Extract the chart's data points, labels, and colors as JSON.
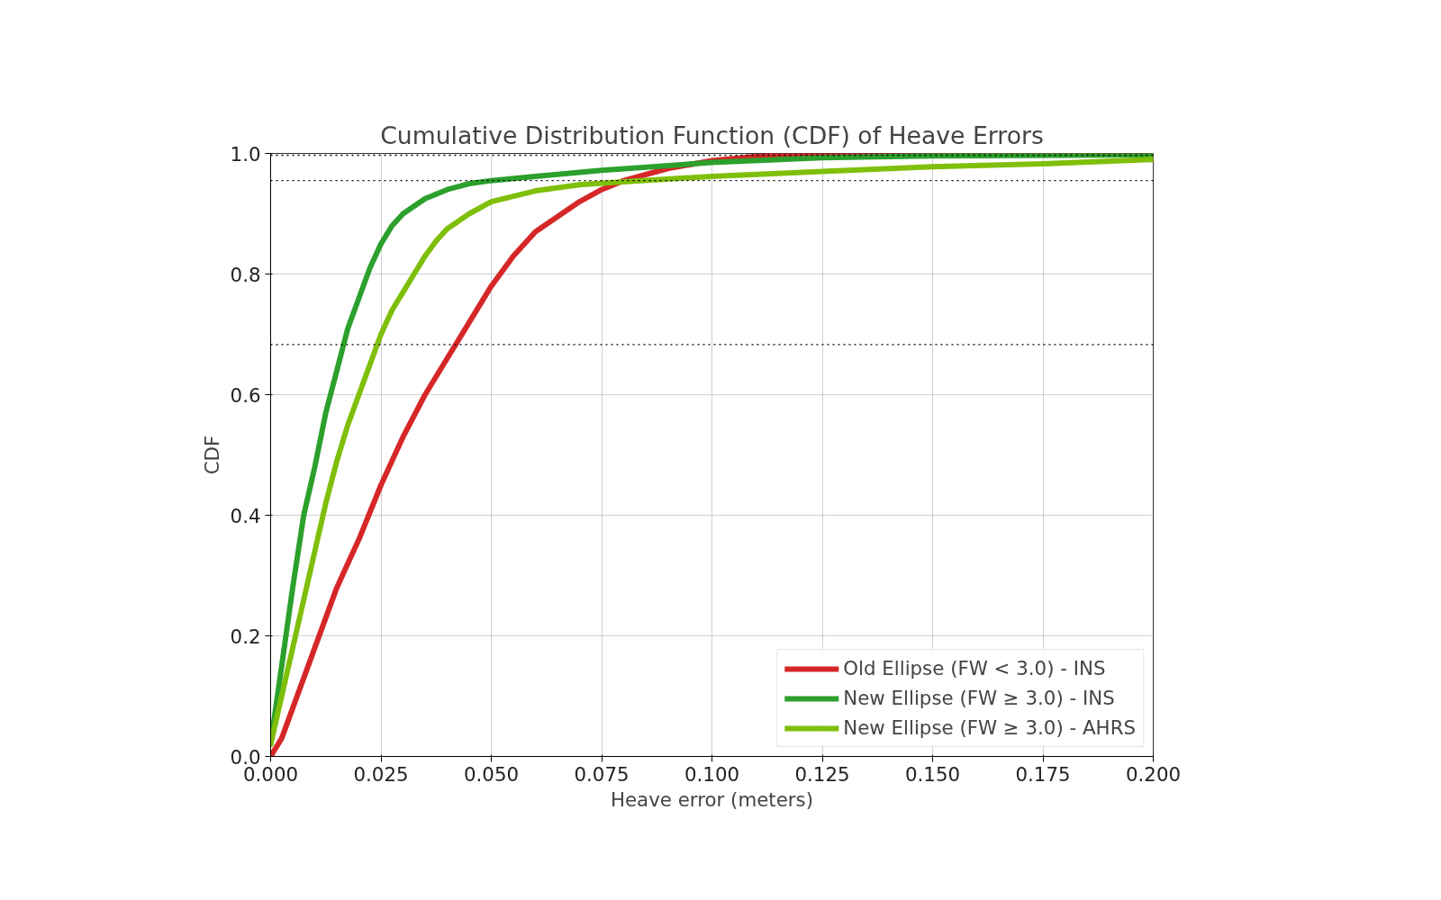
{
  "chart_data": {
    "type": "line",
    "title": "Cumulative Distribution Function (CDF) of Heave Errors",
    "xlabel": "Heave error (meters)",
    "ylabel": "CDF",
    "xlim": [
      0,
      0.2
    ],
    "ylim": [
      0,
      1
    ],
    "xticks": [
      {
        "value": 0,
        "label": "0.000"
      },
      {
        "value": 0.025,
        "label": "0.025"
      },
      {
        "value": 0.05,
        "label": "0.050"
      },
      {
        "value": 0.075,
        "label": "0.075"
      },
      {
        "value": 0.1,
        "label": "0.100"
      },
      {
        "value": 0.125,
        "label": "0.125"
      },
      {
        "value": 0.15,
        "label": "0.150"
      },
      {
        "value": 0.175,
        "label": "0.175"
      },
      {
        "value": 0.2,
        "label": "0.200"
      }
    ],
    "yticks": [
      {
        "value": 0,
        "label": "0.0"
      },
      0.2,
      0.4,
      0.6,
      0.8,
      {
        "value": 1,
        "label": "1.0"
      }
    ],
    "grid": true,
    "legend": "bottom right",
    "line_style": "solid",
    "ref_lines": [
      {
        "axis": "y",
        "value": 0.683,
        "color": "#000000",
        "line_style": "dotted"
      },
      {
        "axis": "y",
        "value": 0.955,
        "color": "#000000",
        "line_style": "dotted"
      },
      {
        "axis": "y",
        "value": 0.997,
        "color": "#000000",
        "line_style": "dotted"
      }
    ],
    "series": [
      {
        "name": "Old Ellipse (FW < 3.0) - INS",
        "color": "#d62728",
        "x": [
          0,
          0.0025,
          0.005,
          0.0075,
          0.01,
          0.0125,
          0.015,
          0.0175,
          0.02,
          0.025,
          0.03,
          0.035,
          0.04,
          0.045,
          0.05,
          0.055,
          0.06,
          0.065,
          0.07,
          0.075,
          0.08,
          0.09,
          0.1,
          0.11,
          0.12,
          0.2
        ],
        "values": [
          0.0,
          0.03,
          0.08,
          0.13,
          0.18,
          0.23,
          0.28,
          0.32,
          0.36,
          0.45,
          0.53,
          0.6,
          0.66,
          0.72,
          0.78,
          0.83,
          0.87,
          0.895,
          0.92,
          0.94,
          0.955,
          0.975,
          0.988,
          0.995,
          0.999,
          1.0
        ]
      },
      {
        "name": "New Ellipse (FW ≥ 3.0) - INS",
        "color": "#2ca02c",
        "x": [
          0,
          0.0025,
          0.005,
          0.0075,
          0.01,
          0.0125,
          0.015,
          0.0175,
          0.02,
          0.0225,
          0.025,
          0.0275,
          0.03,
          0.035,
          0.04,
          0.045,
          0.05,
          0.06,
          0.075,
          0.1,
          0.125,
          0.15,
          0.2
        ],
        "values": [
          0.02,
          0.15,
          0.28,
          0.4,
          0.48,
          0.57,
          0.64,
          0.71,
          0.76,
          0.81,
          0.85,
          0.88,
          0.9,
          0.925,
          0.94,
          0.95,
          0.955,
          0.962,
          0.972,
          0.985,
          0.993,
          0.996,
          0.998
        ]
      },
      {
        "name": "New Ellipse (FW ≥ 3.0) - AHRS",
        "color": "#7fbf0a",
        "x": [
          0,
          0.0025,
          0.005,
          0.0075,
          0.01,
          0.0125,
          0.015,
          0.0175,
          0.02,
          0.0225,
          0.025,
          0.0275,
          0.03,
          0.0325,
          0.035,
          0.0375,
          0.04,
          0.045,
          0.05,
          0.06,
          0.07,
          0.08,
          0.1,
          0.125,
          0.15,
          0.175,
          0.2
        ],
        "values": [
          0.02,
          0.1,
          0.18,
          0.26,
          0.34,
          0.42,
          0.49,
          0.55,
          0.6,
          0.65,
          0.7,
          0.74,
          0.77,
          0.8,
          0.83,
          0.855,
          0.875,
          0.9,
          0.92,
          0.938,
          0.948,
          0.953,
          0.962,
          0.97,
          0.978,
          0.983,
          0.99
        ]
      }
    ]
  }
}
